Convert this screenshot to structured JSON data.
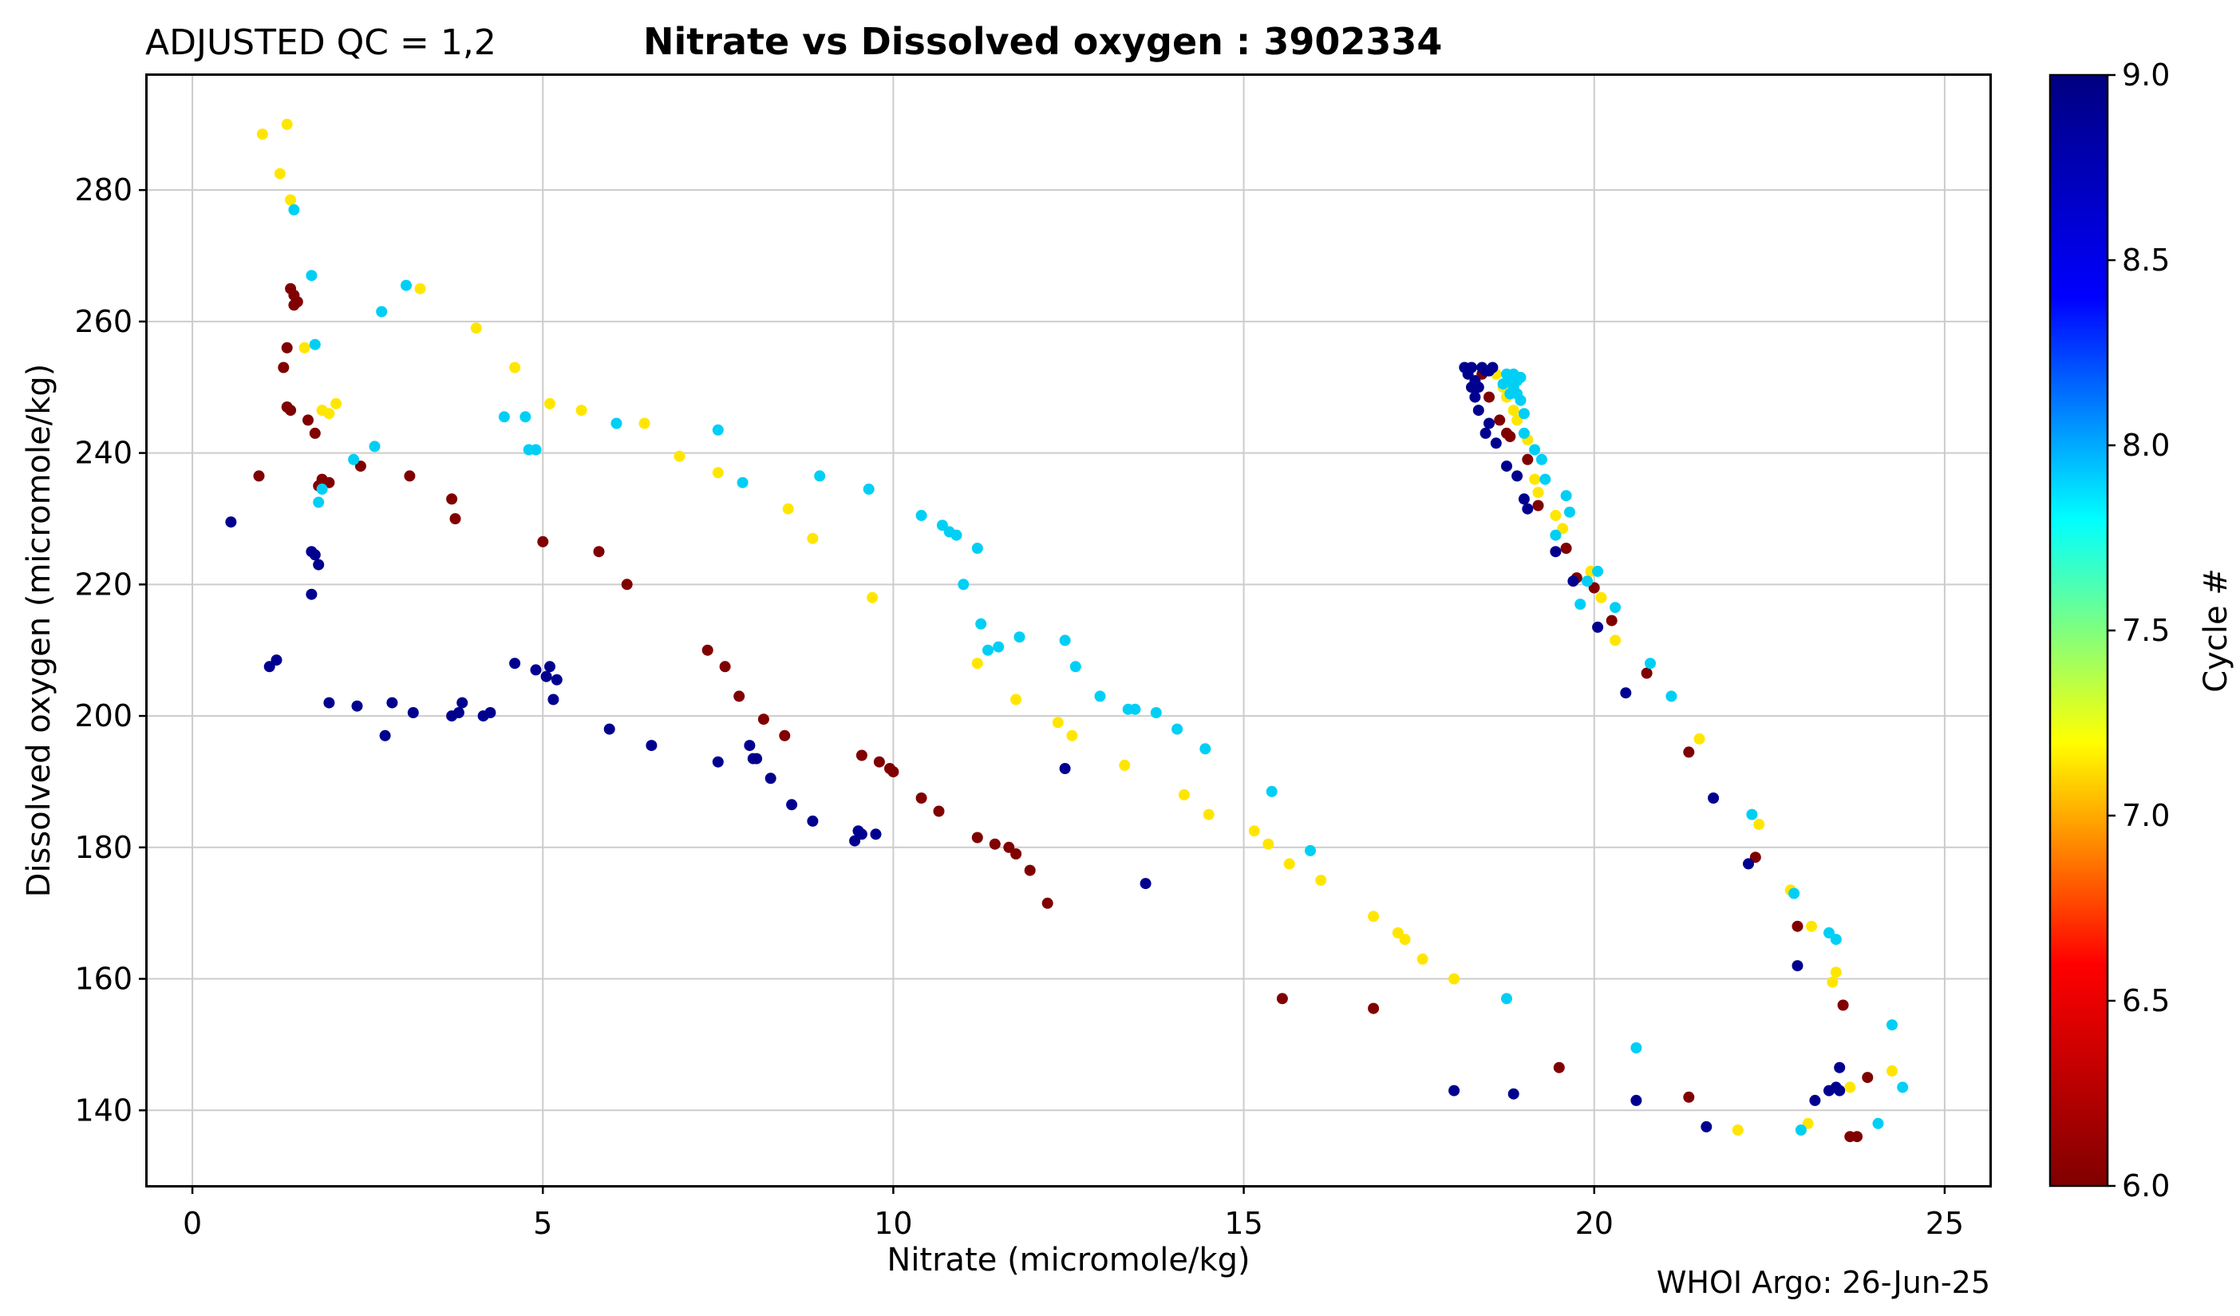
{
  "header": {
    "qc_label": "ADJUSTED QC = 1,2",
    "title": "Nitrate vs Dissolved oxygen : 3902334"
  },
  "footer": {
    "credit": "WHOI Argo: 26-Jun-25"
  },
  "colorbar": {
    "label": "Cycle #",
    "range": [
      6.0,
      9.0
    ],
    "ticks": [
      "6.0",
      "6.5",
      "7.0",
      "7.5",
      "8.0",
      "8.5",
      "9.0"
    ],
    "colormap": "jet",
    "colormap_stops": [
      "#800000",
      "#ff0000",
      "#ffff00",
      "#00ffff",
      "#0000ff",
      "#000080"
    ]
  },
  "chart_data": {
    "type": "scatter",
    "title": "Nitrate vs Dissolved oxygen : 3902334",
    "xlabel": "Nitrate  (micromole/kg)",
    "ylabel": "Dissolved oxygen  (micromole/kg)",
    "xlim": [
      -0.65,
      25.65
    ],
    "ylim": [
      128.5,
      297.5
    ],
    "xticks": [
      0,
      5,
      10,
      15,
      20,
      25
    ],
    "yticks": [
      140,
      160,
      180,
      200,
      220,
      240,
      260,
      280
    ],
    "grid": true,
    "series": [
      {
        "name": "Cycle 6",
        "cycle": 6,
        "color": "#800000",
        "x": [
          1.4,
          1.45,
          1.5,
          1.45,
          1.35,
          1.3,
          1.35,
          1.4,
          1.65,
          1.75,
          1.85,
          1.8,
          1.95,
          2.4,
          0.95,
          3.1,
          3.7,
          3.75,
          5.0,
          5.8,
          6.2,
          7.35,
          7.6,
          7.8,
          8.15,
          8.45,
          9.55,
          9.8,
          9.95,
          10.0,
          10.4,
          10.65,
          11.2,
          11.45,
          11.65,
          11.75,
          11.95,
          12.2,
          15.55,
          16.85,
          19.5,
          21.35,
          23.65,
          23.75,
          23.9,
          23.55,
          22.9,
          22.3,
          21.35,
          20.75,
          20.25,
          20.0,
          19.75,
          19.6,
          19.2,
          19.05,
          18.8,
          18.75,
          18.65,
          18.5,
          18.4
        ],
        "y": [
          265,
          264,
          263,
          262.5,
          256,
          253,
          247,
          246.5,
          245,
          243,
          236,
          235,
          235.5,
          238,
          236.5,
          236.5,
          233,
          230,
          226.5,
          225,
          220,
          210,
          207.5,
          203,
          199.5,
          197,
          194,
          193,
          192,
          191.5,
          187.5,
          185.5,
          181.5,
          180.5,
          180,
          179,
          176.5,
          171.5,
          157,
          155.5,
          146.5,
          142,
          136,
          136,
          145,
          156,
          168,
          178.5,
          194.5,
          206.5,
          214.5,
          219.5,
          221,
          225.5,
          232,
          239,
          242.5,
          243,
          245,
          248.5,
          252
        ]
      },
      {
        "name": "Cycle 7",
        "cycle": 7,
        "color": "#ffe600",
        "x": [
          1.0,
          1.35,
          1.25,
          1.4,
          1.6,
          1.85,
          1.95,
          2.05,
          3.25,
          4.05,
          4.6,
          5.1,
          5.55,
          6.45,
          6.95,
          7.5,
          8.5,
          8.85,
          9.7,
          11.2,
          11.75,
          12.35,
          12.55,
          13.3,
          14.15,
          14.5,
          15.15,
          15.35,
          15.65,
          16.1,
          16.85,
          17.2,
          17.3,
          17.55,
          18.0,
          22.05,
          23.05,
          23.1,
          23.65,
          24.25,
          23.45,
          23.4,
          22.8,
          22.35,
          21.5,
          20.3,
          20.1,
          19.95,
          19.55,
          19.45,
          19.2,
          19.15,
          19.05,
          18.9,
          18.85,
          18.75,
          18.7,
          18.6
        ],
        "y": [
          288.5,
          290,
          282.5,
          278.5,
          256,
          246.5,
          246,
          247.5,
          265,
          259,
          253,
          247.5,
          246.5,
          244.5,
          239.5,
          237,
          231.5,
          227,
          218,
          208,
          202.5,
          199,
          197,
          192.5,
          188,
          185,
          182.5,
          180.5,
          177.5,
          175,
          169.5,
          167,
          166,
          163,
          160,
          137,
          138,
          168,
          143.5,
          146,
          161,
          159.5,
          173.5,
          183.5,
          196.5,
          211.5,
          218,
          222,
          228.5,
          230.5,
          234,
          236,
          242,
          245,
          246.5,
          248.5,
          250,
          252
        ]
      },
      {
        "name": "Cycle 8",
        "cycle": 8,
        "color": "#00cff5",
        "x": [
          1.45,
          1.7,
          1.75,
          1.85,
          1.8,
          2.3,
          2.6,
          2.7,
          3.05,
          4.45,
          4.75,
          4.8,
          4.9,
          6.05,
          7.5,
          7.85,
          8.95,
          9.65,
          10.4,
          10.7,
          10.8,
          10.9,
          11.0,
          11.2,
          11.25,
          11.35,
          11.5,
          11.8,
          12.45,
          12.6,
          12.95,
          13.35,
          13.45,
          13.75,
          14.05,
          14.45,
          15.4,
          15.95,
          18.75,
          20.6,
          21.1,
          22.25,
          22.85,
          23.35,
          23.45,
          24.25,
          24.4,
          24.05,
          22.95,
          20.8,
          20.3,
          20.05,
          19.9,
          19.8,
          19.65,
          19.6,
          19.45,
          19.3,
          19.25,
          19.15,
          19.0,
          19.0,
          18.95,
          18.9,
          18.85,
          18.8,
          18.75,
          18.85,
          18.9,
          18.7,
          18.95,
          18.8
        ],
        "y": [
          277,
          267,
          256.5,
          234.5,
          232.5,
          239,
          241,
          261.5,
          265.5,
          245.5,
          245.5,
          240.5,
          240.5,
          244.5,
          243.5,
          235.5,
          236.5,
          234.5,
          230.5,
          229,
          228,
          227.5,
          220,
          225.5,
          214,
          210,
          210.5,
          212,
          211.5,
          207.5,
          203,
          201,
          201,
          200.5,
          198,
          195,
          188.5,
          179.5,
          157,
          149.5,
          203,
          185,
          173,
          167,
          166,
          153,
          143.5,
          138,
          137,
          208,
          216.5,
          222,
          220.5,
          217,
          231,
          233.5,
          227.5,
          236,
          239,
          240.5,
          243,
          246,
          248,
          249,
          250,
          251,
          252,
          252,
          251,
          250.5,
          251.5,
          249
        ]
      },
      {
        "name": "Cycle 9",
        "cycle": 9,
        "color": "#00008f",
        "x": [
          0.55,
          1.1,
          1.2,
          1.7,
          1.75,
          1.8,
          1.7,
          1.95,
          2.35,
          2.75,
          2.85,
          3.15,
          3.7,
          3.8,
          3.85,
          4.15,
          4.25,
          4.6,
          4.9,
          5.05,
          5.1,
          5.15,
          5.2,
          5.95,
          6.55,
          7.5,
          7.95,
          8.0,
          8.05,
          8.25,
          8.55,
          8.85,
          9.45,
          9.5,
          9.55,
          9.75,
          12.45,
          13.6,
          18.0,
          18.85,
          20.6,
          21.6,
          23.15,
          23.45,
          23.5,
          23.5,
          23.35,
          22.9,
          22.2,
          21.7,
          20.45,
          20.05,
          19.7,
          19.45,
          19.05,
          19.0,
          18.9,
          18.75,
          18.6,
          18.45,
          18.5,
          18.35,
          18.3,
          18.25,
          18.2,
          18.15,
          18.2,
          18.3,
          18.35,
          18.45,
          18.55,
          18.25,
          18.4,
          18.5
        ],
        "y": [
          229.5,
          207.5,
          208.5,
          225,
          224.5,
          223,
          218.5,
          202,
          201.5,
          197,
          202,
          200.5,
          200,
          200.5,
          202,
          200,
          200.5,
          208,
          207,
          206,
          207.5,
          202.5,
          205.5,
          198,
          195.5,
          193,
          195.5,
          193.5,
          193.5,
          190.5,
          186.5,
          184,
          181,
          182.5,
          182,
          182,
          192,
          174.5,
          143,
          142.5,
          141.5,
          137.5,
          141.5,
          143.5,
          143,
          146.5,
          143,
          162,
          177.5,
          187.5,
          203.5,
          213.5,
          220.5,
          225,
          231.5,
          233,
          236.5,
          238,
          241.5,
          243,
          244.5,
          246.5,
          248.5,
          250,
          252,
          253,
          252.5,
          251,
          250,
          252.5,
          253,
          253,
          253,
          252.5
        ]
      }
    ]
  }
}
